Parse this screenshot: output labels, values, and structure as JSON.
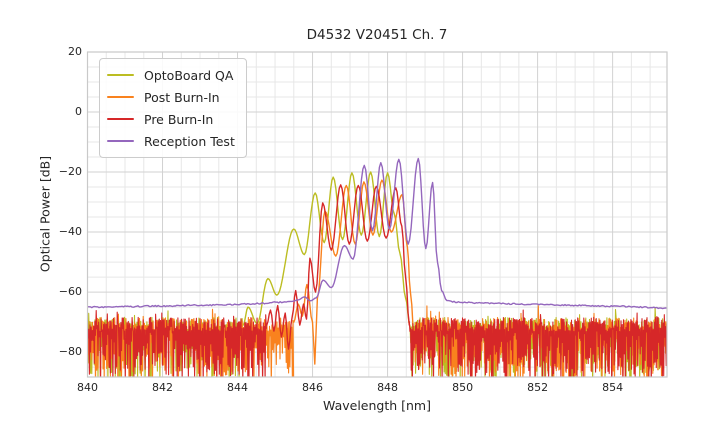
{
  "figure": {
    "title": "D4532 V20451 Ch. 7",
    "xlabel": "Wavelength [nm]",
    "ylabel": "Optical Power [dB]"
  },
  "chart_data": {
    "type": "line",
    "title": "D4532 V20451 Ch. 7",
    "xlabel": "Wavelength [nm]",
    "ylabel": "Optical Power [dB]",
    "xlim": [
      840,
      855.45
    ],
    "ylim": [
      -88.3,
      20
    ],
    "xticks": [
      840,
      842,
      844,
      846,
      848,
      850,
      852,
      854
    ],
    "xtick_labels": [
      "840",
      "842",
      "844",
      "846",
      "848",
      "850",
      "852",
      "854"
    ],
    "yticks": [
      20,
      0,
      -20,
      -40,
      -60,
      -80
    ],
    "ytick_labels": [
      "20",
      "0",
      "−20",
      "−40",
      "−60",
      "−80"
    ],
    "grid": {
      "major": true,
      "minor": true,
      "minor_x_step_nm": 0.5,
      "minor_y_step_db": 5,
      "major_color": "#d2d2d2",
      "minor_color": "#e7e7e7",
      "spine_color": "#c9c9c9"
    },
    "legend": {
      "location": "upper left"
    },
    "noise_floor": {
      "top_mean_db": -70.8,
      "top_spread_db": 2.4,
      "spike_prob": 0.07,
      "spike_max_db": 4.5,
      "depth_min_db": 2.5,
      "depth_max_db": 17,
      "step_nm": 0.033
    },
    "series": [
      {
        "name": "OptoBoard QA",
        "color": "#bcbd22",
        "noise_ranges": [
          [
            840,
            844.15
          ],
          [
            848.6,
            855.45
          ]
        ],
        "jitter_ranges": [],
        "points": [
          [
            844.15,
            -71
          ],
          [
            844.28,
            -65
          ],
          [
            844.52,
            -70.5
          ],
          [
            844.81,
            -55.5
          ],
          [
            845.05,
            -61
          ],
          [
            845.5,
            -39
          ],
          [
            845.78,
            -47.5
          ],
          [
            846.07,
            -27
          ],
          [
            846.31,
            -43.5
          ],
          [
            846.55,
            -21.7
          ],
          [
            846.8,
            -42.5
          ],
          [
            847.05,
            -20.3
          ],
          [
            847.3,
            -41
          ],
          [
            847.55,
            -20
          ],
          [
            847.78,
            -41.5
          ],
          [
            848.0,
            -20.3
          ],
          [
            848.18,
            -34
          ],
          [
            848.33,
            -47
          ],
          [
            848.48,
            -62
          ],
          [
            848.6,
            -71.5
          ]
        ]
      },
      {
        "name": "Post Burn-In",
        "color": "#f9821e",
        "noise_ranges": [
          [
            840,
            845.5
          ],
          [
            848.72,
            855.45
          ]
        ],
        "jitter_ranges": [],
        "points": [
          [
            845.5,
            -70
          ],
          [
            845.62,
            -64
          ],
          [
            845.73,
            -68
          ],
          [
            845.85,
            -57.5
          ],
          [
            846.0,
            -70
          ],
          [
            846.06,
            -84
          ],
          [
            846.13,
            -62
          ],
          [
            846.33,
            -33
          ],
          [
            846.62,
            -48
          ],
          [
            846.9,
            -24.5
          ],
          [
            847.14,
            -44
          ],
          [
            847.37,
            -23.3
          ],
          [
            847.61,
            -41
          ],
          [
            847.85,
            -22.7
          ],
          [
            848.1,
            -40
          ],
          [
            848.39,
            -27.5
          ],
          [
            848.53,
            -45
          ],
          [
            848.61,
            -60
          ],
          [
            848.72,
            -77
          ]
        ]
      },
      {
        "name": "Pre Burn-In",
        "color": "#d62728",
        "noise_ranges": [
          [
            840,
            844.78
          ],
          [
            848.58,
            855.45
          ]
        ],
        "jitter_ranges": [],
        "points": [
          [
            844.78,
            -71
          ],
          [
            844.88,
            -66
          ],
          [
            844.97,
            -73
          ],
          [
            845.07,
            -64.5
          ],
          [
            845.17,
            -75
          ],
          [
            845.27,
            -67
          ],
          [
            845.36,
            -79
          ],
          [
            845.46,
            -68
          ],
          [
            845.55,
            -59.5
          ],
          [
            845.66,
            -71
          ],
          [
            845.76,
            -64
          ],
          [
            845.84,
            -69
          ],
          [
            845.93,
            -48.7
          ],
          [
            846.08,
            -60
          ],
          [
            846.27,
            -30.3
          ],
          [
            846.5,
            -46
          ],
          [
            846.75,
            -24.3
          ],
          [
            846.98,
            -44
          ],
          [
            847.22,
            -24.5
          ],
          [
            847.46,
            -43
          ],
          [
            847.7,
            -24.8
          ],
          [
            847.96,
            -42
          ],
          [
            848.22,
            -25.3
          ],
          [
            848.38,
            -38
          ],
          [
            848.48,
            -55
          ],
          [
            848.58,
            -71
          ]
        ]
      },
      {
        "name": "Reception Test",
        "color": "#9467bd",
        "noise_ranges": [],
        "jitter_ranges": [
          [
            840,
            845.3
          ],
          [
            849.7,
            855.45
          ]
        ],
        "jitter_amp_db": 0.22,
        "points": [
          [
            840,
            -65
          ],
          [
            841,
            -64.85
          ],
          [
            842,
            -64.65
          ],
          [
            843,
            -64.4
          ],
          [
            844,
            -64.1
          ],
          [
            844.6,
            -63.8
          ],
          [
            845.1,
            -63.4
          ],
          [
            845.45,
            -63.1
          ],
          [
            845.62,
            -62.6
          ],
          [
            845.78,
            -61.6
          ],
          [
            845.95,
            -62.9
          ],
          [
            846.1,
            -61.9
          ],
          [
            846.28,
            -56
          ],
          [
            846.5,
            -58.5
          ],
          [
            846.85,
            -44.5
          ],
          [
            847.08,
            -49
          ],
          [
            847.38,
            -17.8
          ],
          [
            847.6,
            -39.5
          ],
          [
            847.82,
            -16.9
          ],
          [
            848.05,
            -39
          ],
          [
            848.3,
            -15.8
          ],
          [
            848.55,
            -44
          ],
          [
            848.82,
            -15.5
          ],
          [
            849.02,
            -45.5
          ],
          [
            849.2,
            -23.5
          ],
          [
            849.33,
            -50
          ],
          [
            849.44,
            -59.5
          ],
          [
            849.58,
            -62.8
          ],
          [
            849.85,
            -63.4
          ],
          [
            850.8,
            -63.8
          ],
          [
            852,
            -64.1
          ],
          [
            853,
            -64.4
          ],
          [
            854,
            -64.7
          ],
          [
            855.45,
            -65.3
          ]
        ]
      }
    ]
  }
}
